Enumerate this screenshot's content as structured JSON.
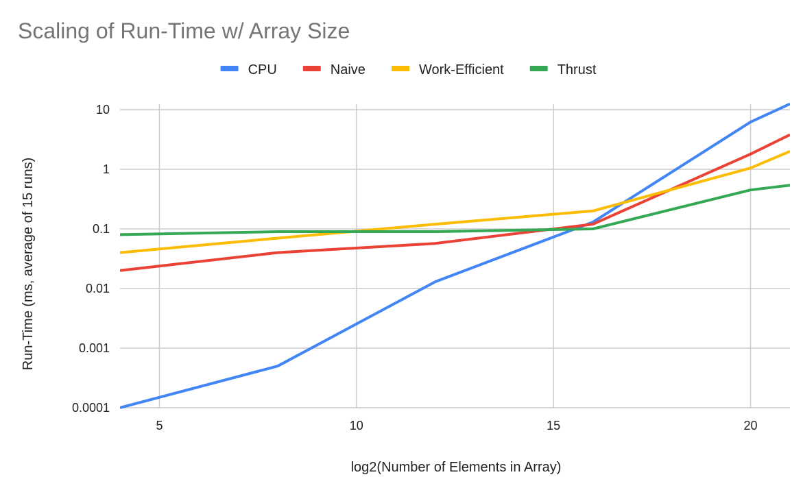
{
  "chart_data": {
    "type": "line",
    "title": "Scaling of Run-Time w/ Array Size",
    "xlabel": "log2(Number of Elements in Array)",
    "ylabel": "Run-Time (ms, average of 15 runs)",
    "xlim": [
      4,
      21
    ],
    "ylim": [
      0.0001,
      10
    ],
    "yscale": "log",
    "x_ticks": [
      5,
      10,
      15,
      20
    ],
    "y_ticks": [
      0.0001,
      0.001,
      0.01,
      0.1,
      1,
      10
    ],
    "x_tick_labels": [
      "5",
      "10",
      "15",
      "20"
    ],
    "y_tick_labels": [
      "0.0001",
      "0.001",
      "0.01",
      "0.1",
      "1",
      "10"
    ],
    "grid": true,
    "legend_position": "top",
    "x": [
      4,
      8,
      12,
      16,
      20,
      21
    ],
    "series": [
      {
        "name": "CPU",
        "color": "#4285F4",
        "values": [
          0.0001,
          0.0005,
          0.013,
          0.13,
          6.2,
          12.5
        ]
      },
      {
        "name": "Naive",
        "color": "#EA4335",
        "values": [
          0.02,
          0.04,
          0.057,
          0.12,
          1.8,
          3.8
        ]
      },
      {
        "name": "Work-Efficient",
        "color": "#FBBC04",
        "values": [
          0.04,
          0.07,
          0.12,
          0.2,
          1.05,
          2.0
        ]
      },
      {
        "name": "Thrust",
        "color": "#34A853",
        "values": [
          0.08,
          0.09,
          0.09,
          0.1,
          0.45,
          0.54
        ]
      }
    ]
  }
}
